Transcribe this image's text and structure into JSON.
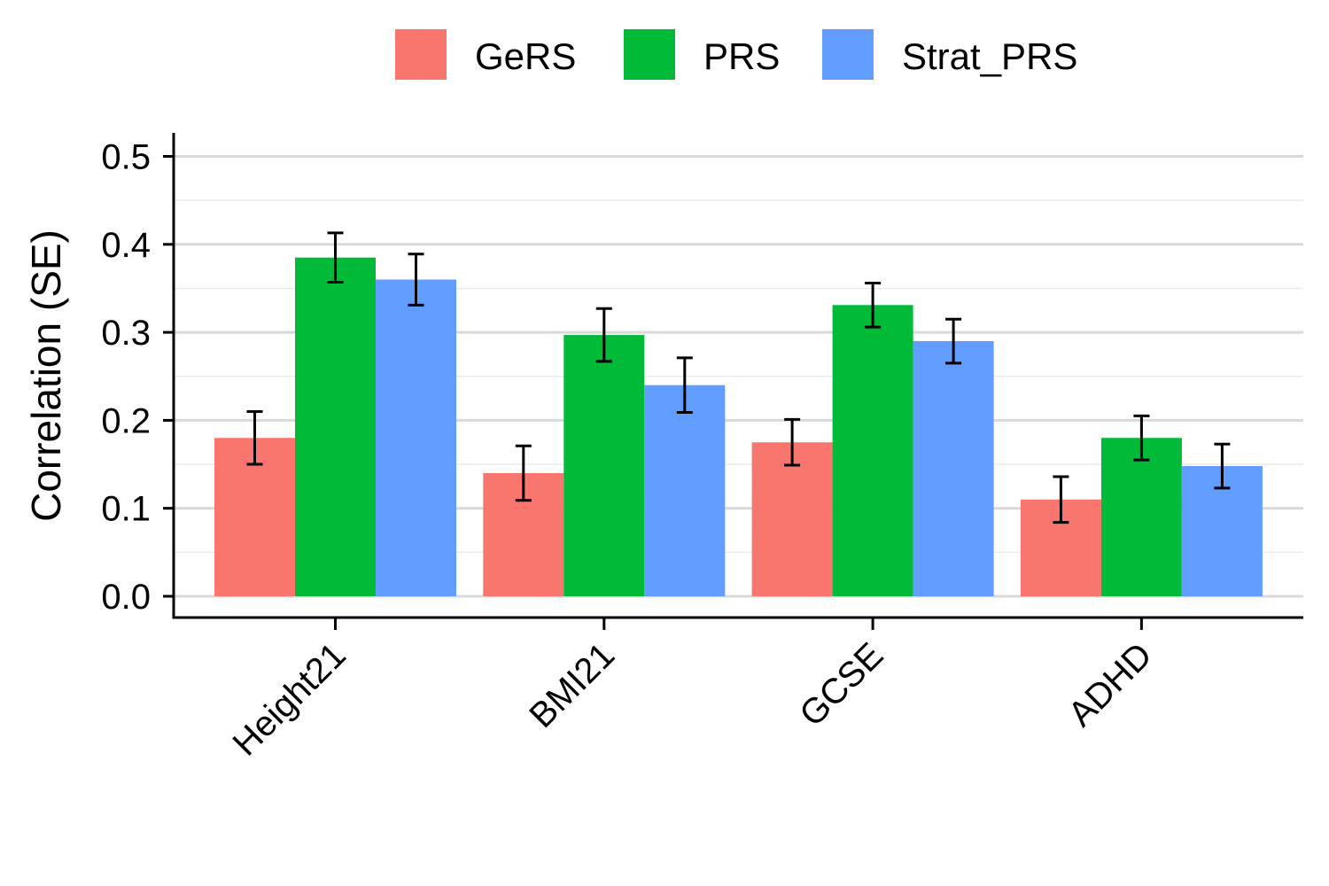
{
  "chart_data": {
    "type": "bar",
    "title": "",
    "xlabel": "",
    "ylabel": "Correlation (SE)",
    "ylim": [
      -0.025,
      0.525
    ],
    "yticks": [
      "0.0",
      "0.1",
      "0.2",
      "0.3",
      "0.4",
      "0.5"
    ],
    "categories": [
      "Height21",
      "BMI21",
      "GCSE",
      "ADHD"
    ],
    "legend_position": "top",
    "grid": true,
    "series": [
      {
        "name": "GeRS",
        "color": "#F8766D",
        "values": [
          0.18,
          0.14,
          0.175,
          0.11
        ],
        "se": [
          0.03,
          0.031,
          0.026,
          0.026
        ]
      },
      {
        "name": "PRS",
        "color": "#00BA38",
        "values": [
          0.385,
          0.297,
          0.331,
          0.18
        ],
        "se": [
          0.028,
          0.03,
          0.025,
          0.025
        ]
      },
      {
        "name": "Strat_PRS",
        "color": "#619CFF",
        "values": [
          0.36,
          0.24,
          0.29,
          0.148
        ],
        "se": [
          0.029,
          0.031,
          0.025,
          0.025
        ]
      }
    ]
  }
}
